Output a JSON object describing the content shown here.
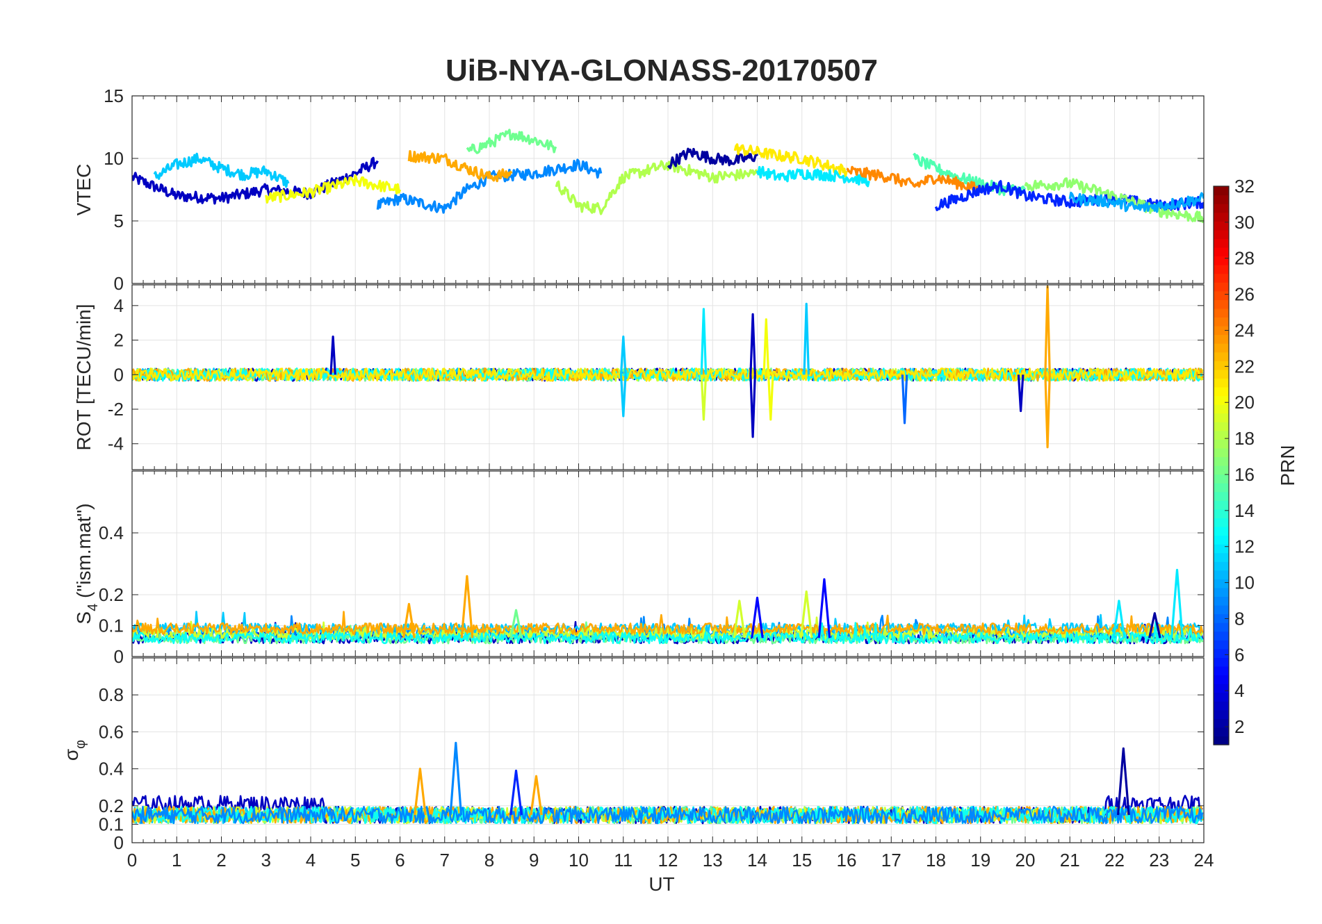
{
  "chart_data": [
    {
      "type": "line",
      "title": "UiB-NYA-GLONASS-20170507",
      "panel": "VTEC",
      "ylabel": "VTEC",
      "xlabel": "",
      "xlim": [
        0,
        24
      ],
      "ylim": [
        0,
        15
      ],
      "yticks": [
        0,
        5,
        10,
        15
      ],
      "grid": true,
      "series": [
        {
          "prn": 3,
          "x": [
            0,
            1,
            2,
            3,
            4,
            5,
            5.5
          ],
          "y": [
            8.5,
            7.0,
            6.8,
            7.5,
            7.2,
            8.8,
            9.8
          ]
        },
        {
          "prn": 9,
          "x": [
            5.5,
            6,
            7,
            7.5,
            8,
            9,
            10,
            10.5
          ],
          "y": [
            6.2,
            6.8,
            6.0,
            7.5,
            8.5,
            8.8,
            9.5,
            8.8
          ]
        },
        {
          "prn": 11,
          "x": [
            0.5,
            1,
            1.5,
            2,
            2.5,
            3,
            3.5
          ],
          "y": [
            8.5,
            9.5,
            10.0,
            9.2,
            8.7,
            9.0,
            8.0
          ]
        },
        {
          "prn": 20,
          "x": [
            3,
            4,
            5,
            6
          ],
          "y": [
            6.8,
            7.3,
            8.2,
            7.5
          ]
        },
        {
          "prn": 16,
          "x": [
            7.5,
            8,
            8.5,
            9,
            9.5
          ],
          "y": [
            10.5,
            11.2,
            12.0,
            11.5,
            10.8
          ]
        },
        {
          "prn": 23,
          "x": [
            6.2,
            7,
            7.5,
            8,
            8.5
          ],
          "y": [
            10.2,
            10.0,
            9.2,
            8.5,
            8.8
          ]
        },
        {
          "prn": 18,
          "x": [
            9.5,
            10,
            10.5,
            11,
            11.5,
            12,
            13,
            14
          ],
          "y": [
            8.0,
            6.2,
            6.0,
            8.5,
            9.0,
            9.5,
            8.5,
            8.8
          ]
        },
        {
          "prn": 2,
          "x": [
            12,
            12.5,
            13,
            13.5,
            14
          ],
          "y": [
            9.5,
            10.5,
            10.0,
            9.8,
            10.2
          ]
        },
        {
          "prn": 21,
          "x": [
            13.5,
            14,
            14.5,
            15,
            15.5,
            16
          ],
          "y": [
            10.8,
            10.5,
            10.2,
            10.0,
            9.5,
            9.0
          ]
        },
        {
          "prn": 12,
          "x": [
            14,
            14.5,
            15,
            15.5,
            16,
            16.5
          ],
          "y": [
            9.0,
            8.5,
            8.8,
            8.7,
            8.5,
            8.2
          ]
        },
        {
          "prn": 15,
          "x": [
            17.5,
            18,
            18.5,
            19,
            19.5,
            20
          ],
          "y": [
            10.0,
            9.2,
            8.5,
            8.0,
            7.5,
            7.5
          ]
        },
        {
          "prn": 24,
          "x": [
            16,
            17,
            17.5,
            18,
            18.5,
            19
          ],
          "y": [
            9.0,
            8.5,
            7.8,
            8.5,
            8.0,
            7.5
          ]
        },
        {
          "prn": 6,
          "x": [
            18,
            18.5,
            19,
            19.5,
            20,
            21,
            22,
            23,
            24
          ],
          "y": [
            6.2,
            6.8,
            7.5,
            7.8,
            7.0,
            6.5,
            6.8,
            6.2,
            6.5
          ]
        },
        {
          "prn": 17,
          "x": [
            20,
            21,
            22,
            23,
            24
          ],
          "y": [
            7.8,
            8.0,
            7.0,
            5.8,
            5.2
          ]
        },
        {
          "prn": 10,
          "x": [
            21,
            22,
            22.5,
            23,
            23.5,
            24
          ],
          "y": [
            6.8,
            6.5,
            6.0,
            6.2,
            6.5,
            6.8
          ]
        }
      ]
    },
    {
      "type": "line",
      "panel": "ROT",
      "ylabel": "ROT [TECU/min]",
      "xlim": [
        0,
        24
      ],
      "ylim": [
        -5.5,
        5.2
      ],
      "yticks": [
        -4,
        -2,
        0,
        2,
        4
      ],
      "grid": true,
      "spikes": [
        {
          "prn": 3,
          "x": 4.5,
          "y": 2.2
        },
        {
          "prn": 12,
          "x": 12.8,
          "y": 3.8
        },
        {
          "prn": 3,
          "x": 13.9,
          "y": 3.5
        },
        {
          "prn": 3,
          "x": 13.9,
          "y": -3.6
        },
        {
          "prn": 11,
          "x": 15.1,
          "y": 4.1
        },
        {
          "prn": 20,
          "x": 14.2,
          "y": 3.2
        },
        {
          "prn": 19,
          "x": 12.8,
          "y": -2.6
        },
        {
          "prn": 20,
          "x": 14.3,
          "y": -2.6
        },
        {
          "prn": 8,
          "x": 17.3,
          "y": -2.8
        },
        {
          "prn": 3,
          "x": 19.9,
          "y": -2.1
        },
        {
          "prn": 23,
          "x": 20.5,
          "y": 5.1
        },
        {
          "prn": 23,
          "x": 20.5,
          "y": -4.2
        },
        {
          "prn": 11,
          "x": 11.0,
          "y": -2.4
        },
        {
          "prn": 11,
          "x": 11.0,
          "y": 2.2
        }
      ]
    },
    {
      "type": "line",
      "panel": "S4",
      "ylabel": "S4 (\"ism.mat\")",
      "ylabel_main": "S",
      "ylabel_sub": "4",
      "ylabel_rest": " (\"ism.mat\")",
      "xlim": [
        0,
        24
      ],
      "ylim": [
        0,
        0.6
      ],
      "yticks": [
        0,
        0.1,
        0.2,
        0.4
      ],
      "grid": true,
      "peaks": [
        {
          "prn": 23,
          "x": 7.5,
          "y": 0.26
        },
        {
          "prn": 23,
          "x": 6.2,
          "y": 0.17
        },
        {
          "prn": 16,
          "x": 8.6,
          "y": 0.15
        },
        {
          "prn": 5,
          "x": 14.0,
          "y": 0.19
        },
        {
          "prn": 19,
          "x": 13.6,
          "y": 0.18
        },
        {
          "prn": 19,
          "x": 15.1,
          "y": 0.21
        },
        {
          "prn": 5,
          "x": 15.5,
          "y": 0.25
        },
        {
          "prn": 12,
          "x": 22.1,
          "y": 0.18
        },
        {
          "prn": 12,
          "x": 23.4,
          "y": 0.28
        },
        {
          "prn": 2,
          "x": 22.9,
          "y": 0.14
        }
      ]
    },
    {
      "type": "line",
      "panel": "sigma_phi",
      "ylabel": "σφ",
      "ylabel_main": "σ",
      "ylabel_sub": "φ",
      "xlabel": "UT",
      "xlim": [
        0,
        24
      ],
      "ylim": [
        0,
        1
      ],
      "yticks": [
        0,
        0.1,
        0.2,
        0.4,
        0.6,
        0.8
      ],
      "xticks": [
        0,
        1,
        2,
        3,
        4,
        5,
        6,
        7,
        8,
        9,
        10,
        11,
        12,
        13,
        14,
        15,
        16,
        17,
        18,
        19,
        20,
        21,
        22,
        23,
        24
      ],
      "grid": true,
      "peaks": [
        {
          "prn": 9,
          "x": 7.25,
          "y": 0.54
        },
        {
          "prn": 2,
          "x": 22.2,
          "y": 0.51
        },
        {
          "prn": 23,
          "x": 6.45,
          "y": 0.4
        },
        {
          "prn": 6,
          "x": 8.6,
          "y": 0.39
        },
        {
          "prn": 23,
          "x": 9.05,
          "y": 0.36
        }
      ]
    }
  ],
  "colorbar": {
    "label": "PRN",
    "min": 1,
    "max": 32,
    "ticks": [
      2,
      4,
      6,
      8,
      10,
      12,
      14,
      16,
      18,
      20,
      22,
      24,
      26,
      28,
      30,
      32
    ],
    "colormap": "jet"
  }
}
